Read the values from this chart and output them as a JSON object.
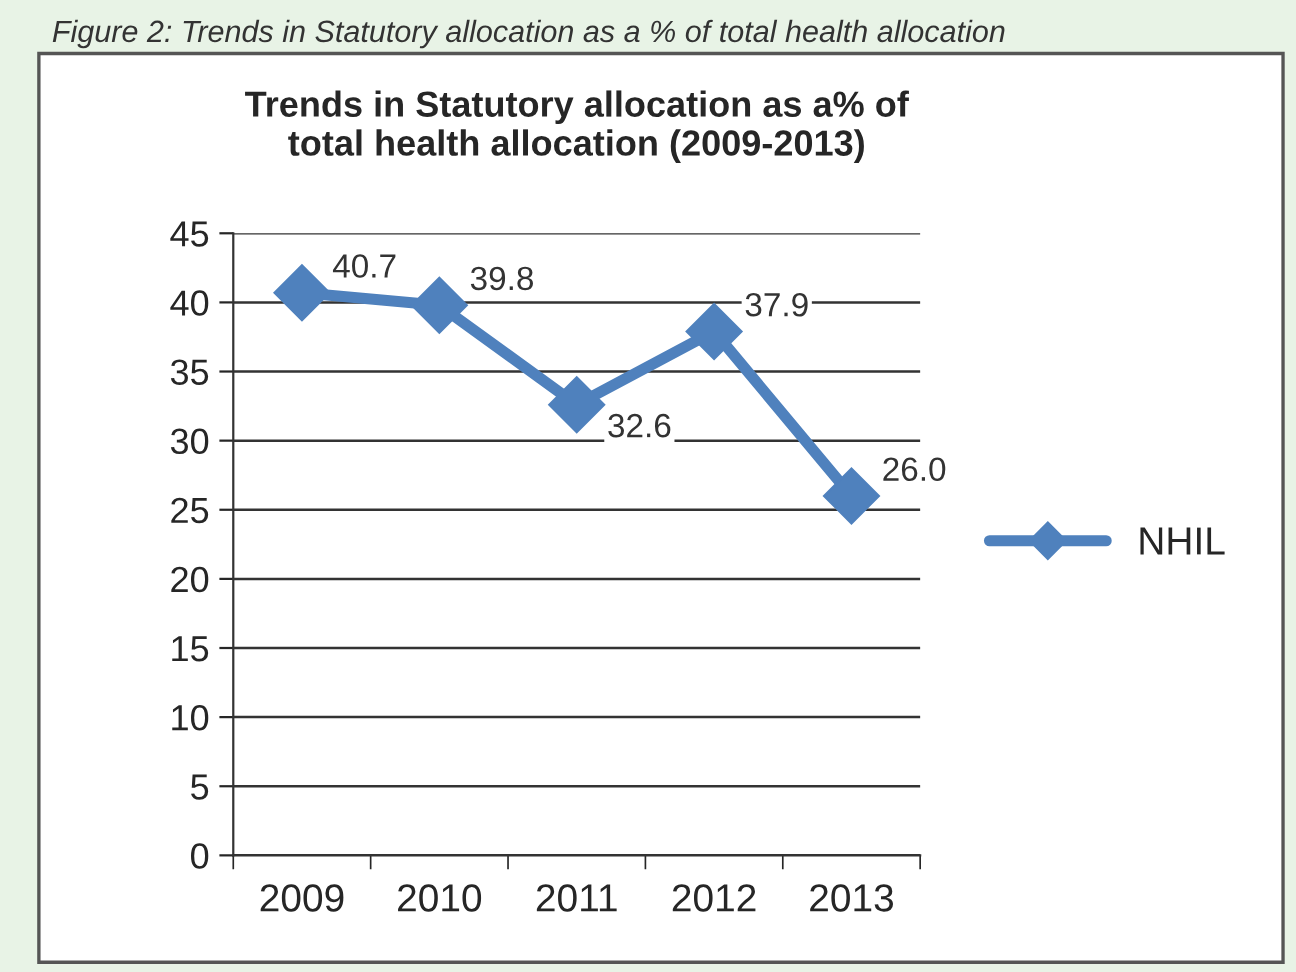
{
  "chart_data": {
    "type": "line",
    "title": "Trends in Statutory allocation as a% of\ntotal health allocation (2009-2013)",
    "annotations": [
      "Figure 2: Trends in Statutory allocation as a % of total health allocation"
    ],
    "categories": [
      "2009",
      "2010",
      "2011",
      "2012",
      "2013"
    ],
    "series": [
      {
        "name": "NHIL",
        "color": "#4f81bd",
        "values": [
          40.7,
          39.8,
          32.6,
          37.9,
          26.0
        ],
        "value_labels": [
          "40.7",
          "39.8",
          "32.6",
          "37.9",
          "26.0"
        ]
      }
    ],
    "ylim": [
      0,
      45
    ],
    "yticks": [
      0,
      5,
      10,
      15,
      20,
      25,
      30,
      35,
      40,
      45
    ],
    "grid": "y",
    "legend": "right",
    "marker": "diamond",
    "line_style": "solid"
  }
}
